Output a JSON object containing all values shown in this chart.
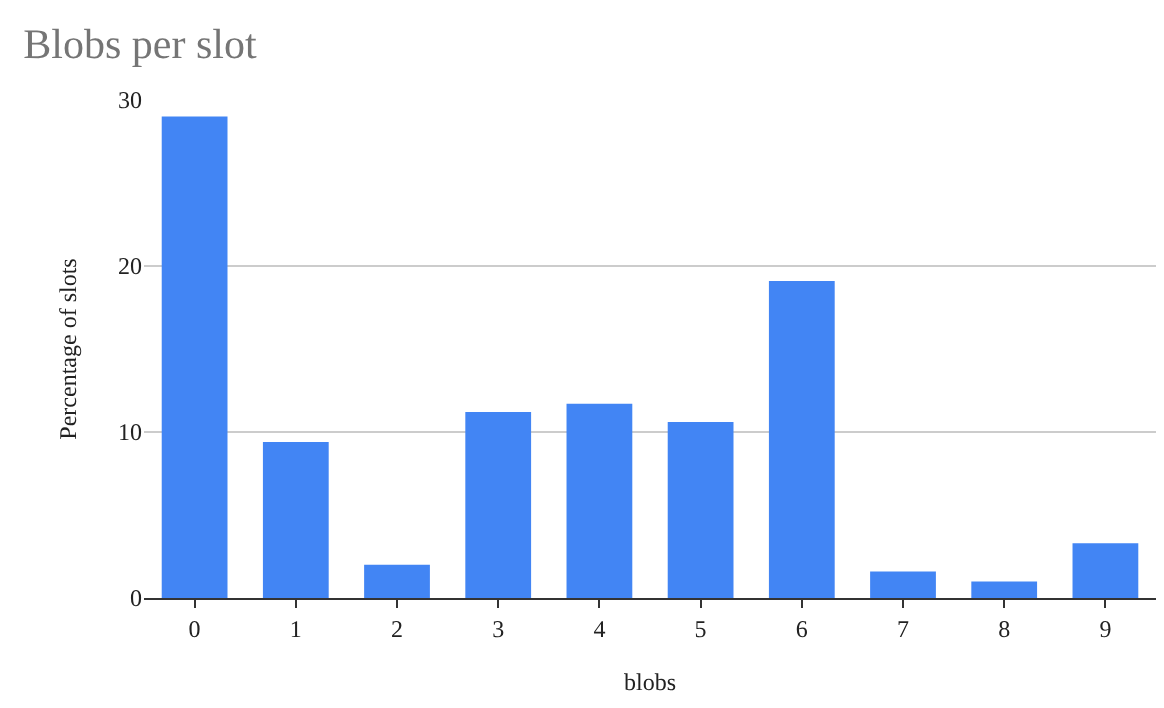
{
  "chart_data": {
    "type": "bar",
    "title": "Blobs per slot",
    "xlabel": "blobs",
    "ylabel": "Percentage of slots",
    "categories": [
      "0",
      "1",
      "2",
      "3",
      "4",
      "5",
      "6",
      "7",
      "8",
      "9"
    ],
    "values": [
      29.0,
      9.4,
      2.0,
      11.2,
      11.7,
      10.6,
      19.1,
      1.6,
      1.0,
      3.3
    ],
    "color": "#4285f4",
    "ylim": [
      0,
      30
    ],
    "yticks": [
      0,
      10,
      20,
      30
    ],
    "grid": "y"
  }
}
